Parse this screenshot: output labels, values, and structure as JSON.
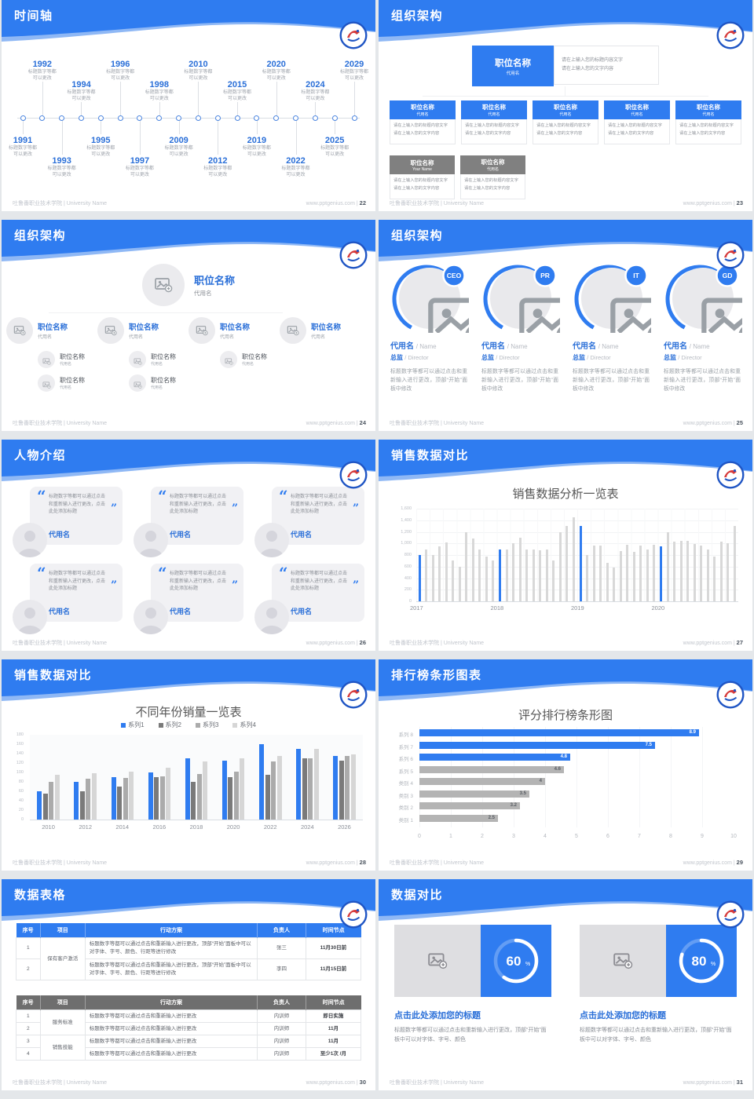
{
  "footer": {
    "left": "吐鲁番职业技术学院 | University Name",
    "site": "www.pptgenius.com",
    "sep": "|"
  },
  "timeline": {
    "title": "时间轴",
    "page": "22",
    "caption": [
      "标题数字等都",
      "可以更改"
    ],
    "items": [
      {
        "year": "1991",
        "side": "below",
        "tier": "near"
      },
      {
        "year": "1992",
        "side": "above",
        "tier": "far"
      },
      {
        "year": "1993",
        "side": "below",
        "tier": "far"
      },
      {
        "year": "1994",
        "side": "above",
        "tier": "near"
      },
      {
        "year": "1995",
        "side": "below",
        "tier": "near"
      },
      {
        "year": "1996",
        "side": "above",
        "tier": "far"
      },
      {
        "year": "1997",
        "side": "below",
        "tier": "far"
      },
      {
        "year": "1998",
        "side": "above",
        "tier": "near"
      },
      {
        "year": "2009",
        "side": "below",
        "tier": "near"
      },
      {
        "year": "2010",
        "side": "above",
        "tier": "far"
      },
      {
        "year": "2012",
        "side": "below",
        "tier": "far"
      },
      {
        "year": "2015",
        "side": "above",
        "tier": "near"
      },
      {
        "year": "2019",
        "side": "below",
        "tier": "near"
      },
      {
        "year": "2020",
        "side": "above",
        "tier": "far"
      },
      {
        "year": "2022",
        "side": "below",
        "tier": "far"
      },
      {
        "year": "2024",
        "side": "above",
        "tier": "near"
      },
      {
        "year": "2025",
        "side": "below",
        "tier": "near"
      },
      {
        "year": "2029",
        "side": "above",
        "tier": "far"
      }
    ]
  },
  "org_boxes": {
    "title": "组织架构",
    "page": "23",
    "root": {
      "name": "职位名称",
      "sub": "代用名"
    },
    "root_note": [
      "请在上输入您的标题内容文字",
      "请在上输入您的文字内容"
    ],
    "note": [
      "请在上输入您的标题内容文字",
      "请在上输入您的文字内容"
    ],
    "level2": [
      {
        "name": "职位名称",
        "sub": "代用名"
      },
      {
        "name": "职位名称",
        "sub": "代用名"
      },
      {
        "name": "职位名称",
        "sub": "代用名"
      },
      {
        "name": "职位名称",
        "sub": "代用名"
      },
      {
        "name": "职位名称",
        "sub": "代用名"
      }
    ],
    "level3": [
      {
        "name": "职位名称",
        "sub": "Your Name"
      },
      {
        "name": "职位名称",
        "sub": "代用名"
      }
    ]
  },
  "org_tree": {
    "title": "组织架构",
    "page": "24",
    "root": {
      "name": "职位名称",
      "sub": "代用名"
    },
    "children": [
      {
        "name": "职位名称",
        "sub": "代用名",
        "subs": [
          {
            "name": "职位名称",
            "sub": "代用名"
          },
          {
            "name": "职位名称",
            "sub": "代用名"
          }
        ]
      },
      {
        "name": "职位名称",
        "sub": "代用名",
        "subs": [
          {
            "name": "职位名称",
            "sub": "代用名"
          },
          {
            "name": "职位名称",
            "sub": "代用名"
          }
        ]
      },
      {
        "name": "职位名称",
        "sub": "代用名",
        "subs": [
          {
            "name": "职位名称",
            "sub": "代用名"
          }
        ]
      },
      {
        "name": "职位名称",
        "sub": "代用名",
        "subs": []
      }
    ]
  },
  "org_people": {
    "title": "组织架构",
    "page": "25",
    "body": "标题数字等都可以通过点击和重新输入进行更改，顶部“开始”面板中修改",
    "members": [
      {
        "badge": "CEO",
        "name_cn": "代用名",
        "name_en": "Name",
        "role_cn": "总监",
        "role_en": "Director"
      },
      {
        "badge": "PR",
        "name_cn": "代用名",
        "name_en": "Name",
        "role_cn": "总监",
        "role_en": "Director"
      },
      {
        "badge": "IT",
        "name_cn": "代用名",
        "name_en": "Name",
        "role_cn": "总监",
        "role_en": "Director"
      },
      {
        "badge": "GD",
        "name_cn": "代用名",
        "name_en": "Name",
        "role_cn": "总监",
        "role_en": "Director"
      }
    ]
  },
  "people_intro": {
    "title": "人物介绍",
    "page": "26",
    "cards": [
      {
        "text": "标题数字等都可以通过点击和重新输入进行更改，点击此处添加标题",
        "name": "代用名"
      },
      {
        "text": "标题数字等都可以通过点击和重新输入进行更改，点击此处添加标题",
        "name": "代用名"
      },
      {
        "text": "标题数字等都可以通过点击和重新输入进行更改，点击此处添加标题",
        "name": "代用名"
      },
      {
        "text": "标题数字等都可以通过点击和重新输入进行更改，点击此处添加标题",
        "name": "代用名"
      },
      {
        "text": "标题数字等都可以通过点击和重新输入进行更改，点击此处添加标题",
        "name": "代用名"
      },
      {
        "text": "标题数字等都可以通过点击和重新输入进行更改，点击此处添加标题",
        "name": "代用名"
      }
    ]
  },
  "sales": {
    "title": "销售数据对比",
    "page": "27"
  },
  "grouped": {
    "title": "销售数据对比",
    "page": "28"
  },
  "ranking": {
    "title": "排行榜条形图表",
    "page": "29"
  },
  "table": {
    "title": "数据表格",
    "page": "30",
    "headers": [
      "序号",
      "项目",
      "行动方案",
      "负责人",
      "时间节点"
    ],
    "table_a": {
      "groups": [
        {
          "project": "保有客户激活",
          "rows": [
            {
              "no": "1",
              "plan": "标题数字等都可以通过点击和重新输入进行更改，顶部“开始”面板中可以对字体、字号、颜色、行距等进行修改",
              "owner": "张三",
              "time": "11月30日前"
            },
            {
              "no": "2",
              "plan": "标题数字等都可以通过点击和重新输入进行更改，顶部“开始”面板中可以对字体、字号、颜色、行距等进行修改",
              "owner": "李四",
              "time": "11月15日前"
            }
          ]
        }
      ]
    },
    "table_b": {
      "groups": [
        {
          "project": "服务标准",
          "rows": [
            {
              "no": "1",
              "plan": "标题数字等都可以通过点击和重新输入进行更改",
              "owner": "内训师",
              "time": "即日实施"
            },
            {
              "no": "2",
              "plan": "标题数字等都可以通过点击和重新输入进行更改",
              "owner": "内训师",
              "time": "11月"
            }
          ]
        },
        {
          "project": "销售技能",
          "rows": [
            {
              "no": "3",
              "plan": "标题数字等都可以通过点击和重新输入进行更改",
              "owner": "内训师",
              "time": "11月"
            },
            {
              "no": "4",
              "plan": "标题数字等都可以通过点击和重新输入进行更改",
              "owner": "内训师",
              "time": "至少1次 /月"
            }
          ]
        }
      ]
    }
  },
  "compare": {
    "title": "数据对比",
    "page": "31",
    "panels": [
      {
        "percent": 60,
        "heading": "点击此处添加您的标题",
        "body": "标题数字等都可以通过点击和重新输入进行更改，顶部“开始”面板中可以对字体、字号、颜色"
      },
      {
        "percent": 80,
        "heading": "点击此处添加您的标题",
        "body": "标题数字等都可以通过点击和重新输入进行更改，顶部“开始”面板中可以对字体、字号、颜色"
      }
    ]
  },
  "colors": {
    "accent_blue": "#2F7CF0",
    "heading_blue": "#2a6fd8",
    "bar_gray": "#d8d8d8",
    "rank_gray": "#b4b4b4",
    "series_grays": [
      "#7a7a7a",
      "#ababab",
      "#d6d6d6"
    ]
  },
  "chart_data": [
    {
      "id": "sales",
      "type": "bar",
      "title": "销售数据分析一览表",
      "x_tick_labels": [
        "2017",
        "2018",
        "2019",
        "2020"
      ],
      "x_tick_positions": [
        0,
        12,
        24,
        36
      ],
      "highlight_indices": [
        0,
        12,
        24,
        36
      ],
      "values": [
        800,
        900,
        800,
        950,
        1020,
        700,
        600,
        1200,
        1080,
        890,
        770,
        700,
        890,
        890,
        1000,
        1100,
        900,
        900,
        880,
        900,
        700,
        1200,
        1300,
        1450,
        1300,
        800,
        960,
        970,
        660,
        590,
        870,
        980,
        860,
        960,
        890,
        980,
        950,
        1200,
        1030,
        1040,
        1040,
        990,
        970,
        890,
        780,
        1030,
        1010,
        1300
      ],
      "ylim": [
        0,
        1600
      ],
      "y_tick_labels": [
        "0",
        "200",
        "400",
        "600",
        "800",
        "1,000",
        "1,200",
        "1,400",
        "1,600"
      ]
    },
    {
      "id": "grouped",
      "type": "bar",
      "title": "不同年份销量一览表",
      "categories": [
        "2010",
        "2012",
        "2014",
        "2016",
        "2018",
        "2020",
        "2022",
        "2024",
        "2026"
      ],
      "series": [
        {
          "name": "系列1",
          "values": [
            60,
            80,
            90,
            100,
            130,
            125,
            160,
            150,
            135
          ]
        },
        {
          "name": "系列2",
          "values": [
            55,
            60,
            70,
            90,
            80,
            90,
            95,
            130,
            125
          ]
        },
        {
          "name": "系列3",
          "values": [
            80,
            86,
            88,
            92,
            97,
            101,
            123,
            130,
            135
          ]
        },
        {
          "name": "系列4",
          "values": [
            95,
            99,
            102,
            110,
            123,
            130,
            135,
            150,
            138
          ]
        }
      ],
      "ylim": [
        0,
        180
      ],
      "y_step": 20,
      "legend_position": "top"
    },
    {
      "id": "ranking",
      "type": "bar",
      "title": "评分排行榜条形图",
      "orientation": "horizontal",
      "categories": [
        "系列 8",
        "系列 7",
        "系列 6",
        "系列 5",
        "类别 4",
        "类别 3",
        "类别 2",
        "类别 1"
      ],
      "values": [
        8.9,
        7.5,
        4.8,
        4.6,
        4,
        3.5,
        3.2,
        2.5
      ],
      "value_labels": [
        "8.9",
        "7.5",
        "4.8",
        "4.6",
        "4",
        "3.5",
        "3.2",
        "2.5"
      ],
      "blue_count": 3,
      "xlim": [
        0,
        10
      ],
      "x_tick_labels": [
        "0",
        "1",
        "2",
        "3",
        "4",
        "5",
        "6",
        "7",
        "8",
        "9",
        "10"
      ]
    }
  ]
}
